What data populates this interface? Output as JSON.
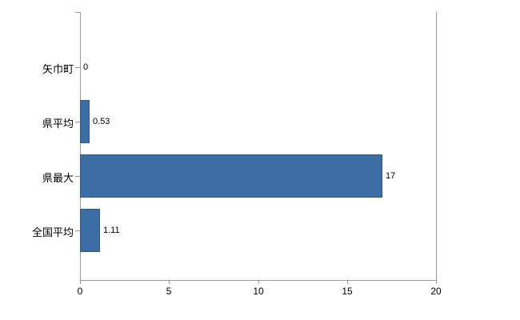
{
  "chart_data": {
    "type": "bar",
    "orientation": "horizontal",
    "title": "",
    "categories": [
      "矢巾町",
      "県平均",
      "県最大",
      "全国平均"
    ],
    "values": [
      0,
      0.53,
      17,
      1.11
    ],
    "value_labels": [
      "0",
      "0.53",
      "17",
      "1.11"
    ],
    "xlim": [
      0,
      20
    ],
    "x_ticks": [
      {
        "value": 0,
        "label": "0"
      },
      {
        "value": 5,
        "label": "5"
      },
      {
        "value": 10,
        "label": "10"
      },
      {
        "value": 15,
        "label": "15"
      },
      {
        "value": 20,
        "label": "20"
      }
    ],
    "grid": false,
    "legend": "none",
    "colors": {
      "bar": "#3C6EA5",
      "bar_border": "#2E5B8F",
      "axis": "#9B9B9B",
      "text": "#000000",
      "background": "#FFFFFF"
    }
  }
}
